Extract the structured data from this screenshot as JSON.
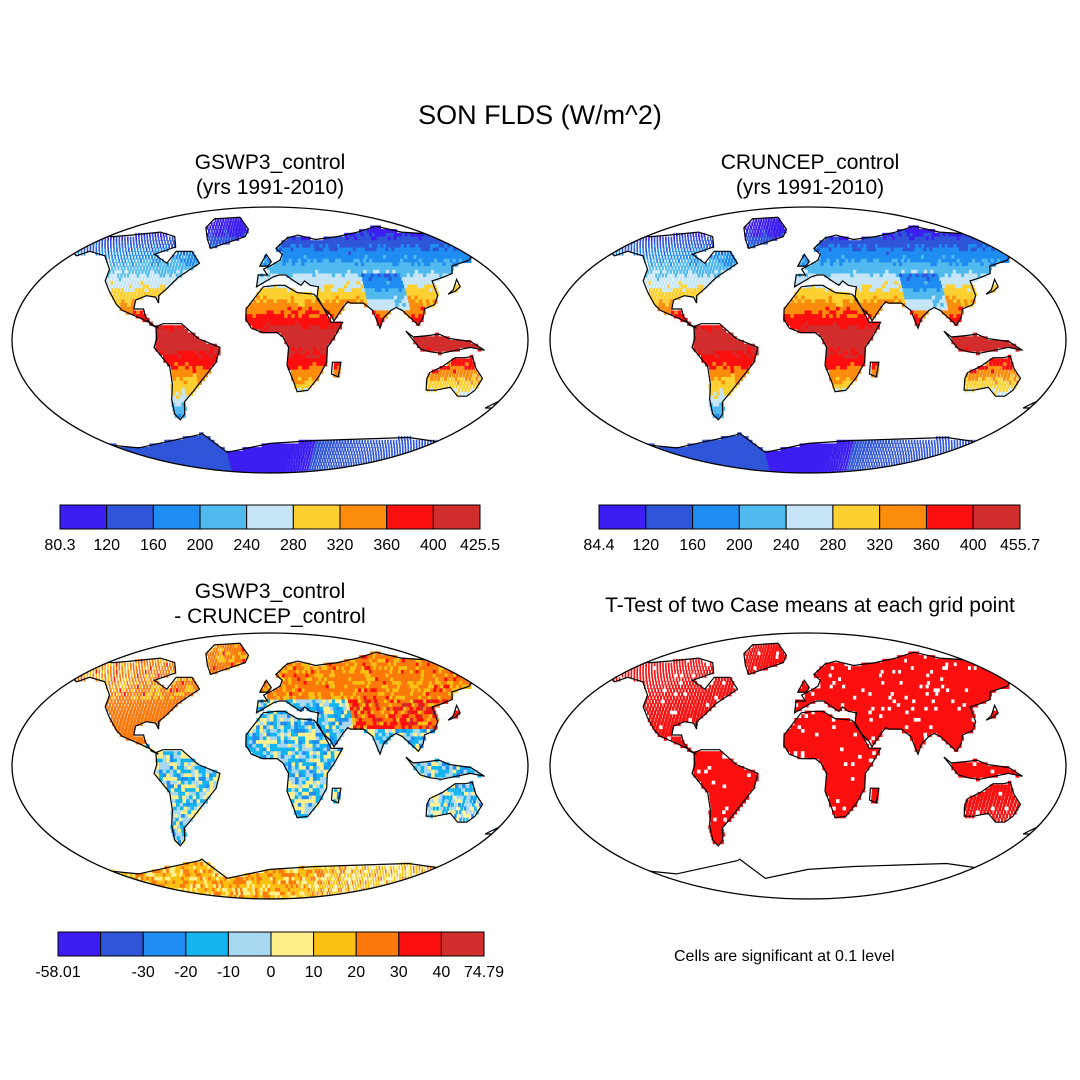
{
  "figure": {
    "title": "SON FLDS (W/m^2)",
    "note": "Cells are significant at 0.1 level"
  },
  "panels": [
    {
      "id": "gswp3",
      "title_line1": "GSWP3_control",
      "title_line2": "(yrs 1991-2010)",
      "colorbar": {
        "colors": [
          "#3c1ef2",
          "#2f55d9",
          "#1e8cf0",
          "#50b9ee",
          "#c6e6f7",
          "#fbd030",
          "#fb8c0c",
          "#fb0f0f",
          "#d22d2d"
        ],
        "labels": [
          "80.3",
          "120",
          "160",
          "200",
          "240",
          "280",
          "320",
          "360",
          "400",
          "425.5"
        ]
      }
    },
    {
      "id": "cruncep",
      "title_line1": "CRUNCEP_control",
      "title_line2": "(yrs 1991-2010)",
      "colorbar": {
        "colors": [
          "#3c1ef2",
          "#2f55d9",
          "#1e8cf0",
          "#50b9ee",
          "#c6e6f7",
          "#fbd030",
          "#fb8c0c",
          "#fb0f0f",
          "#d22d2d"
        ],
        "labels": [
          "84.4",
          "120",
          "160",
          "200",
          "240",
          "280",
          "320",
          "360",
          "400",
          "455.7"
        ]
      }
    },
    {
      "id": "diff",
      "title_line1": "GSWP3_control",
      "title_line2": "- CRUNCEP_control",
      "colorbar": {
        "colors": [
          "#3c1ef2",
          "#2f55d9",
          "#1e8cf0",
          "#14b4f0",
          "#a8d8f0",
          "#fff08c",
          "#fbc014",
          "#fb780a",
          "#fb0f0f",
          "#d22d2d"
        ],
        "labels": [
          "-58.01",
          "",
          "-30",
          "-20",
          "-10",
          "0",
          "10",
          "20",
          "30",
          "40",
          "74.79"
        ]
      }
    },
    {
      "id": "ttest",
      "title_line1": "T-Test of two Case means at each grid point"
    }
  ]
}
